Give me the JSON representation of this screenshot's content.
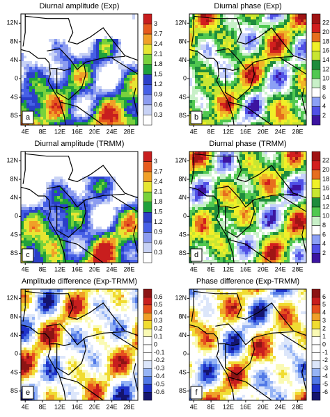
{
  "panels": [
    {
      "title": "Diurnal amplitude (Exp)",
      "label": "a",
      "colorbar": [
        3,
        2.7,
        2.4,
        2.1,
        1.8,
        1.5,
        1.2,
        0.9,
        0.6,
        0.3
      ]
    },
    {
      "title": "Diurnal phase (Exp)",
      "label": "b",
      "colorbar": [
        22,
        20,
        18,
        16,
        14,
        12,
        10,
        8,
        6,
        4,
        2
      ]
    },
    {
      "title": "Diurnal amplitude (TRMM)",
      "label": "c",
      "colorbar": [
        3,
        2.7,
        2.4,
        2.1,
        1.8,
        1.5,
        1.2,
        0.9,
        0.6,
        0.3
      ]
    },
    {
      "title": "Diurnal phase (TRMM)",
      "label": "d",
      "colorbar": [
        22,
        20,
        18,
        16,
        14,
        12,
        10,
        8,
        6,
        4,
        2
      ]
    },
    {
      "title": "Amplitude difference (Exp-TRMM)",
      "label": "e",
      "colorbar": [
        0.6,
        0.5,
        0.4,
        0.3,
        0.2,
        0.1,
        0,
        -0.1,
        -0.2,
        -0.3,
        -0.4,
        -0.5,
        -0.6
      ]
    },
    {
      "title": "Phase difference (Exp-TRMM)",
      "label": "f",
      "colorbar": [
        6,
        5,
        4,
        3,
        2,
        1,
        0,
        -1,
        -2,
        -3,
        -4,
        -5,
        -6
      ]
    }
  ],
  "lat_ticks": [
    "12N",
    "8N",
    "4N",
    "0",
    "4S",
    "8S"
  ],
  "lon_ticks": [
    "4E",
    "8E",
    "12E",
    "16E",
    "20E",
    "24E",
    "28E"
  ]
}
